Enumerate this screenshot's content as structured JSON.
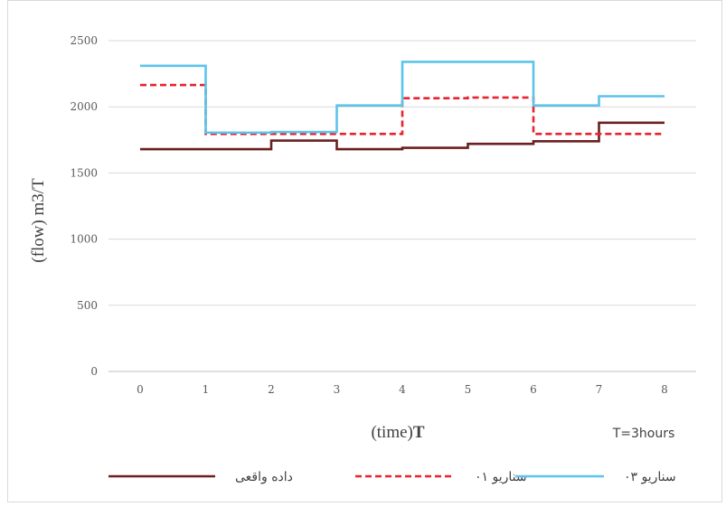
{
  "chart_data": {
    "type": "line",
    "step": true,
    "x": [
      0,
      1,
      2,
      3,
      4,
      5,
      6,
      7,
      8
    ],
    "ylim": [
      0,
      2500
    ],
    "yticks": [
      0,
      500,
      1000,
      1500,
      2000,
      2500
    ],
    "ylabel": "(flow) m3/T",
    "xlabel_prefix": "(time)",
    "xlabel_suffix": "T",
    "note": "T=3hours",
    "grid": true,
    "legend_position": "bottom",
    "series": [
      {
        "name": "داده واقعی",
        "color": "#6b1f1f",
        "dash": "solid",
        "values": [
          1680,
          1680,
          1745,
          1680,
          1690,
          1720,
          1740,
          1880,
          1880
        ]
      },
      {
        "name": "سناریو ۰۱",
        "color": "#e8222e",
        "dash": "dashed",
        "values": [
          2165,
          1795,
          1795,
          1795,
          2065,
          2070,
          1795,
          1795,
          1795
        ]
      },
      {
        "name": "سناریو ۰۳",
        "color": "#5bc4ea",
        "dash": "solid",
        "values": [
          2310,
          1805,
          1810,
          2010,
          2340,
          2340,
          2010,
          2080,
          2080
        ]
      }
    ]
  }
}
